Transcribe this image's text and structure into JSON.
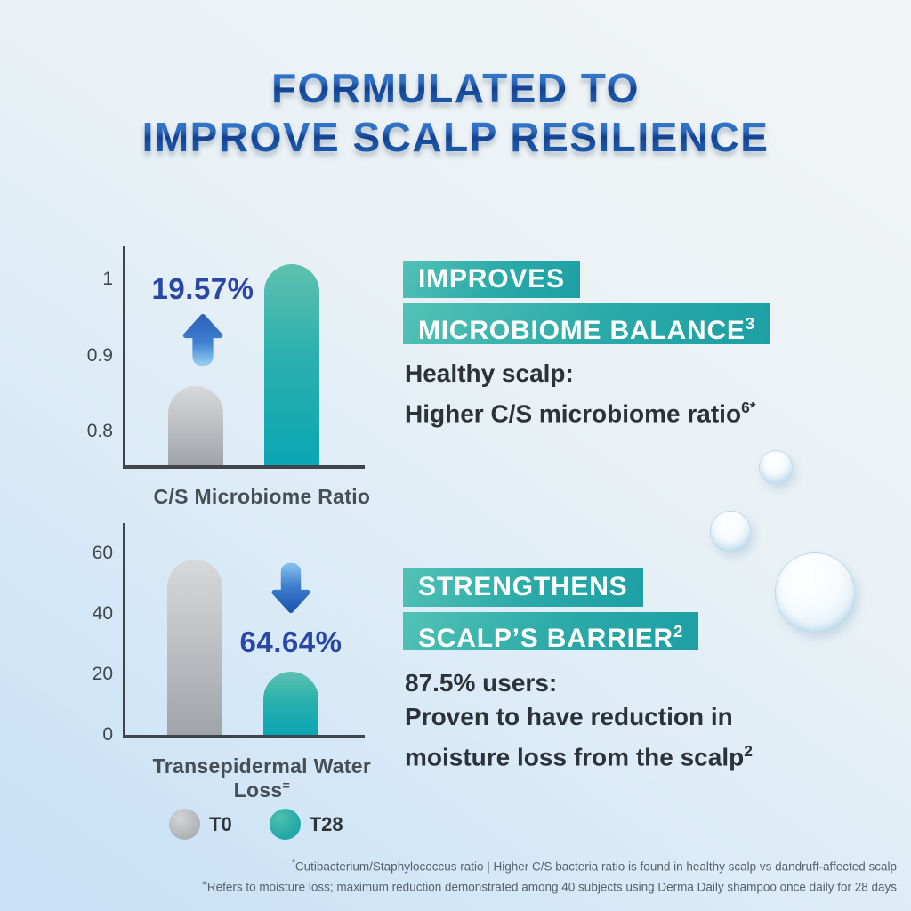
{
  "title": {
    "line1": "FORMULATED TO",
    "line2": "IMPROVE SCALP RESILIENCE"
  },
  "colors": {
    "title_blue": "#17479e",
    "banner_teal": "#25a7a7",
    "bar_gray": "#aeb1b6",
    "bar_teal": "#1fadaf",
    "annotation_blue": "#2a47a5",
    "background_blue": "#c8e1f6",
    "text_dark": "#2c3237",
    "footnote_gray": "#57626b"
  },
  "chart_data": [
    {
      "type": "bar",
      "title": "C/S Microbiome Ratio",
      "title_sup": "",
      "categories": [
        "T0",
        "T28"
      ],
      "values": [
        0.86,
        1.02
      ],
      "yticks": [
        0.8,
        0.9,
        1
      ],
      "ylim": [
        0.755,
        1.045
      ],
      "annotation": "19.57%",
      "annotation_direction": "up",
      "legend_position": "bottom",
      "grid": false
    },
    {
      "type": "bar",
      "title": "Transepidermal Water Loss",
      "title_sup": "=",
      "categories": [
        "T0",
        "T28"
      ],
      "values": [
        58,
        21
      ],
      "yticks": [
        0,
        20,
        40,
        60
      ],
      "ylim": [
        0,
        70
      ],
      "annotation": "64.64%",
      "annotation_direction": "down",
      "legend_position": "bottom",
      "grid": false
    }
  ],
  "sections": [
    {
      "banner1": "IMPROVES",
      "banner2": "MICROBIOME BALANCE",
      "banner2_sup": "3",
      "claim_line1": "Healthy scalp:",
      "claim_line2": "Higher C/S microbiome ratio",
      "claim_line2_sup": "6*"
    },
    {
      "banner1": "STRENGTHENS",
      "banner2": "SCALP’S BARRIER",
      "banner2_sup": "2",
      "claim_line1": "87.5% users:",
      "claim_line2": "Proven to have reduction in",
      "claim_line3": "moisture loss from the scalp",
      "claim_line3_sup": "2"
    }
  ],
  "legend": [
    {
      "label": "T0",
      "swatch": "gray"
    },
    {
      "label": "T28",
      "swatch": "teal"
    }
  ],
  "footnotes": [
    {
      "marker": "*",
      "text": "Cutibacterium/Staphylococcus ratio | Higher C/S bacteria ratio is found in healthy scalp vs dandruff-affected scalp"
    },
    {
      "marker": "=",
      "text": "Refers to moisture loss; maximum reduction demonstrated among 40 subjects using Derma Daily shampoo once daily for 28 days"
    }
  ]
}
